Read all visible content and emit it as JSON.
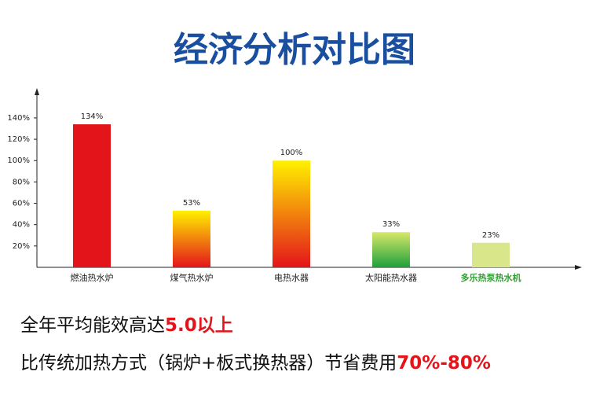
{
  "chart_data": {
    "type": "bar",
    "title": "经济分析对比图",
    "categories": [
      "燃油热水炉",
      "煤气热水炉",
      "电热水器",
      "太阳能热水器",
      "多乐热泵热水机"
    ],
    "category_colors": [
      "#222222",
      "#222222",
      "#222222",
      "#222222",
      "#2ea12e"
    ],
    "values": [
      134,
      53,
      100,
      33,
      23
    ],
    "value_labels": [
      "134%",
      "53%",
      "100%",
      "33%",
      "23%"
    ],
    "colors": [
      [
        "#e4141b",
        "#e4141b"
      ],
      [
        "#fff100",
        "#e4141b"
      ],
      [
        "#fff100",
        "#e4141b"
      ],
      [
        "#d8e86a",
        "#1fa03c"
      ],
      [
        "#d9e68a",
        "#d9e68a"
      ]
    ],
    "ylim": [
      0,
      165
    ],
    "yticks": [
      {
        "value": 20,
        "label": "20%"
      },
      {
        "value": 40,
        "label": "40%"
      },
      {
        "value": 60,
        "label": "60%"
      },
      {
        "value": 80,
        "label": "80%"
      },
      {
        "value": 100,
        "label": "100%"
      },
      {
        "value": 120,
        "label": "120%"
      },
      {
        "value": 140,
        "label": "140%"
      }
    ],
    "grid": false
  },
  "notes": [
    [
      {
        "text": "全年平均能效高达",
        "color": "#111111"
      },
      {
        "text": "5.0以上",
        "color": "#e4141b"
      }
    ],
    [
      {
        "text": "比传统加热方式（锅炉+板式换热器）节省费用",
        "color": "#111111"
      },
      {
        "text": "70%-80%",
        "color": "#e4141b"
      }
    ]
  ]
}
